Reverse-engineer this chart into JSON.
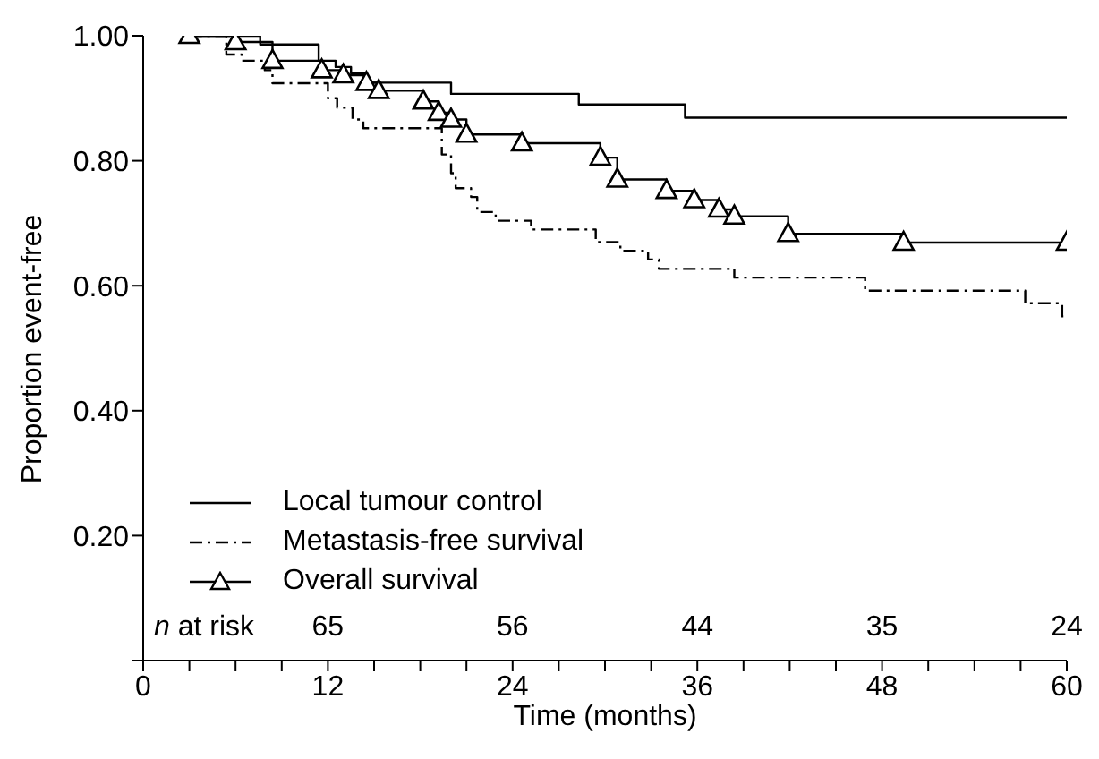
{
  "chart_data": {
    "type": "step",
    "xlabel": "Time (months)",
    "ylabel": "Proportion event-free",
    "xlim": [
      0,
      60
    ],
    "ylim": [
      0,
      1
    ],
    "xticks": [
      0,
      {
        "value": 3,
        "label": null
      },
      {
        "value": 6,
        "label": null
      },
      {
        "value": 9,
        "label": null
      },
      12,
      {
        "value": 15,
        "label": null
      },
      {
        "value": 18,
        "label": null
      },
      {
        "value": 21,
        "label": null
      },
      24,
      {
        "value": 27,
        "label": null
      },
      {
        "value": 30,
        "label": null
      },
      {
        "value": 33,
        "label": null
      },
      36,
      {
        "value": 39,
        "label": null
      },
      {
        "value": 42,
        "label": null
      },
      {
        "value": 45,
        "label": null
      },
      48,
      {
        "value": 51,
        "label": null
      },
      {
        "value": 54,
        "label": null
      },
      {
        "value": 57,
        "label": null
      },
      60
    ],
    "yticks": [
      {
        "value": 0,
        "label": null
      },
      {
        "value": 0.2,
        "label": "0.20"
      },
      {
        "value": 0.4,
        "label": "0.40"
      },
      {
        "value": 0.6,
        "label": "0.60"
      },
      {
        "value": 0.8,
        "label": "0.80"
      },
      {
        "value": 1,
        "label": "1.00"
      }
    ],
    "grid": false,
    "legend": "bottom left",
    "annotations": [
      "n at risk",
      "65",
      "56",
      "44",
      "35",
      "24"
    ],
    "series": [
      {
        "name": "Local tumour control",
        "color": "#000000",
        "line_style": "solid",
        "marker": "none",
        "x": [
          3,
          7.6,
          11.4,
          12.5,
          13.5,
          14.5,
          20,
          28.3,
          35.2,
          60
        ],
        "values": [
          1,
          0.986,
          0.96,
          0.95,
          0.94,
          0.925,
          0.907,
          0.89,
          0.869,
          0.869
        ]
      },
      {
        "name": "Metastasis-free survival",
        "color": "#000000",
        "line_style": "dashed",
        "marker": "none",
        "x": [
          3,
          5.4,
          6.4,
          7.9,
          8.4,
          12,
          12.6,
          13.6,
          14.3,
          19.4,
          20,
          20.3,
          21.3,
          21.7,
          22.9,
          25.2,
          29.4,
          31,
          32.8,
          33.5,
          38.4,
          46.9,
          57.3,
          59.7,
          60
        ],
        "values": [
          1,
          0.97,
          0.96,
          0.945,
          0.924,
          0.9,
          0.885,
          0.866,
          0.852,
          0.81,
          0.78,
          0.756,
          0.742,
          0.718,
          0.704,
          0.69,
          0.67,
          0.656,
          0.642,
          0.627,
          0.613,
          0.592,
          0.572,
          0.551,
          0.551
        ]
      },
      {
        "name": "Overall survival",
        "color": "#000000",
        "line_style": "solid",
        "marker": "triangle",
        "x": [
          3,
          6,
          8.4,
          11.6,
          13,
          14.5,
          15.3,
          18.2,
          19.2,
          20,
          21,
          24.6,
          29.7,
          30.8,
          34,
          35.8,
          37.4,
          38.4,
          41.9,
          49.4,
          60
        ],
        "values": [
          1,
          0.99,
          0.96,
          0.945,
          0.937,
          0.925,
          0.912,
          0.895,
          0.877,
          0.866,
          0.842,
          0.828,
          0.805,
          0.77,
          0.752,
          0.737,
          0.722,
          0.711,
          0.683,
          0.669,
          0.669
        ]
      }
    ]
  }
}
